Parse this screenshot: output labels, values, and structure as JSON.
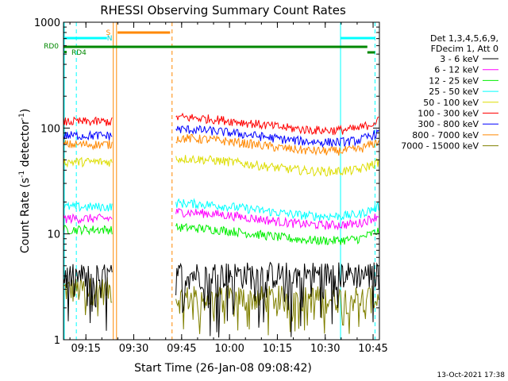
{
  "chart_data": {
    "type": "line",
    "title": "RHESSI Observing Summary Count Rates",
    "xlabel": "Start Time (26-Jan-08 09:08:42)",
    "ylabel_main": "Count Rate (s",
    "ylabel_sup1": "-1",
    "ylabel_mid": " detector",
    "ylabel_sup2": "-1",
    "ylabel_end": ")",
    "yscale": "log",
    "ylim": [
      1,
      1000
    ],
    "xlim_minutes": [
      9.133,
      10.783
    ],
    "x_ticks": [
      "09:15",
      "09:30",
      "09:45",
      "10:00",
      "10:15",
      "10:30",
      "10:45"
    ],
    "x_tick_hours": [
      9.25,
      9.5,
      9.75,
      10.0,
      10.25,
      10.5,
      10.75
    ],
    "y_ticks": [
      "1",
      "10",
      "100",
      "1000"
    ],
    "y_tick_values": [
      1,
      10,
      100,
      1000
    ],
    "legend_header": [
      "Det 1,3,4,5,6,9,",
      "FDecim 1, Att 0"
    ],
    "legend_position": "right",
    "series": [
      {
        "name": "3 - 6 keV",
        "color": "#000000",
        "level_a": 4.0,
        "level_b": 4.2,
        "noisy": true
      },
      {
        "name": "6 - 12 keV",
        "color": "#ff00ff",
        "level_a": 14,
        "level_b": 14,
        "noisy": false
      },
      {
        "name": "12 - 25 keV",
        "color": "#00ee00",
        "level_a": 11,
        "level_b": 10,
        "noisy": false
      },
      {
        "name": "25 - 50 keV",
        "color": "#00ffff",
        "level_a": 18,
        "level_b": 17,
        "noisy": false
      },
      {
        "name": "50 - 100 keV",
        "color": "#dddd00",
        "level_a": 48,
        "level_b": 45,
        "noisy": false
      },
      {
        "name": "100 - 300 keV",
        "color": "#ff0000",
        "level_a": 115,
        "level_b": 110,
        "noisy": false
      },
      {
        "name": "300 - 800 keV",
        "color": "#0000ff",
        "level_a": 85,
        "level_b": 85,
        "noisy": false
      },
      {
        "name": "800 - 7000 keV",
        "color": "#ff8800",
        "level_a": 70,
        "level_b": 70,
        "noisy": false
      },
      {
        "name": "7000 - 15000 keV",
        "color": "#808000",
        "level_a": 3.0,
        "level_b": 2.5,
        "noisy": true
      }
    ],
    "flags": {
      "rd0_label": "RD0",
      "rd4_label": "RD4",
      "saa_label": "S",
      "night_label": "N"
    },
    "timestamp": "13-Oct-2021 17:38"
  }
}
